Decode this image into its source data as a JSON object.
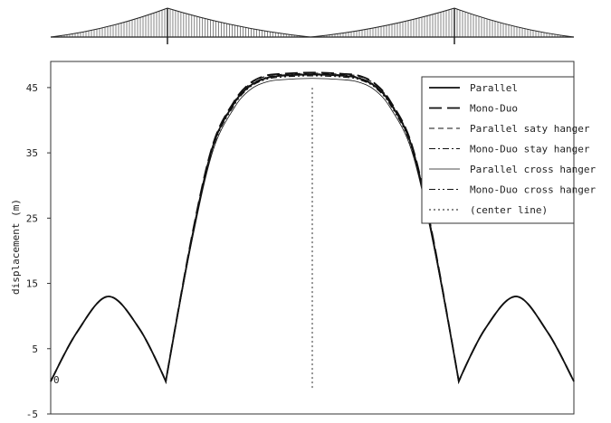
{
  "chart_data": {
    "type": "line",
    "title": "",
    "xlabel": "",
    "ylabel": "displacement (m)",
    "ylim": [
      -5,
      49
    ],
    "xlim": [
      0,
      1
    ],
    "y_ticks": [
      "45",
      "35",
      "25",
      "15",
      "5",
      "-5"
    ],
    "y_tick_values": [
      45,
      35,
      25,
      15,
      5,
      -5
    ],
    "zero_label": "0",
    "grid": false,
    "legend_position": "top-right",
    "series": [
      {
        "name": "Parallel",
        "style": "solid-thick",
        "x": [
          0,
          0.05,
          0.11,
          0.17,
          0.22,
          0.27,
          0.31,
          0.35,
          0.38,
          0.41,
          0.44,
          0.5,
          0.56,
          0.59,
          0.62,
          0.65,
          0.69,
          0.73,
          0.78,
          0.83,
          0.89,
          0.95,
          1
        ],
        "y": [
          0,
          7.5,
          13,
          8,
          0,
          22,
          36,
          42.5,
          45.2,
          46.4,
          46.8,
          47,
          46.8,
          46.4,
          45.2,
          42.5,
          36,
          22,
          0,
          8,
          13,
          7.5,
          0
        ]
      },
      {
        "name": "Mono-Duo",
        "style": "long-dash",
        "x": [
          0,
          0.05,
          0.11,
          0.17,
          0.22,
          0.27,
          0.31,
          0.35,
          0.38,
          0.41,
          0.44,
          0.5,
          0.56,
          0.59,
          0.62,
          0.65,
          0.69,
          0.73,
          0.78,
          0.83,
          0.89,
          0.95,
          1
        ],
        "y": [
          0,
          7.5,
          13,
          8,
          0,
          22.3,
          36.3,
          42.8,
          45.6,
          46.8,
          47.1,
          47.3,
          47.1,
          46.8,
          45.6,
          42.8,
          36.3,
          22.3,
          0,
          8,
          13,
          7.5,
          0
        ]
      },
      {
        "name": "Parallel saty hanger",
        "style": "dash",
        "x": [
          0,
          0.05,
          0.11,
          0.17,
          0.22,
          0.27,
          0.31,
          0.35,
          0.38,
          0.41,
          0.44,
          0.5,
          0.56,
          0.59,
          0.62,
          0.65,
          0.69,
          0.73,
          0.78,
          0.83,
          0.89,
          0.95,
          1
        ],
        "y": [
          0,
          7.5,
          13,
          8,
          0,
          22.2,
          36.2,
          42.7,
          45.5,
          46.7,
          47.0,
          47.2,
          47.0,
          46.7,
          45.5,
          42.7,
          36.2,
          22.2,
          0,
          8,
          13,
          7.5,
          0
        ]
      },
      {
        "name": "Mono-Duo stay hanger",
        "style": "dash-dot",
        "x": [
          0,
          0.05,
          0.11,
          0.17,
          0.22,
          0.27,
          0.31,
          0.35,
          0.38,
          0.41,
          0.44,
          0.5,
          0.56,
          0.59,
          0.62,
          0.65,
          0.69,
          0.73,
          0.78,
          0.83,
          0.89,
          0.95,
          1
        ],
        "y": [
          0,
          7.5,
          13,
          8,
          0,
          22.1,
          36.1,
          42.6,
          45.3,
          46.5,
          46.9,
          47.1,
          46.9,
          46.5,
          45.3,
          42.6,
          36.1,
          22.1,
          0,
          8,
          13,
          7.5,
          0
        ]
      },
      {
        "name": "Parallel cross hanger",
        "style": "solid-thin",
        "x": [
          0,
          0.05,
          0.11,
          0.17,
          0.22,
          0.27,
          0.31,
          0.35,
          0.38,
          0.41,
          0.44,
          0.5,
          0.56,
          0.59,
          0.62,
          0.65,
          0.69,
          0.73,
          0.78,
          0.83,
          0.89,
          0.95,
          1
        ],
        "y": [
          0,
          7.5,
          13,
          8,
          0,
          21.5,
          35.3,
          41.8,
          44.6,
          45.8,
          46.2,
          46.4,
          46.2,
          45.8,
          44.6,
          41.8,
          35.3,
          21.5,
          0,
          8,
          13,
          7.5,
          0
        ]
      },
      {
        "name": "Mono-Duo cross hanger",
        "style": "dash-dot-dot",
        "x": [
          0,
          0.05,
          0.11,
          0.17,
          0.22,
          0.27,
          0.31,
          0.35,
          0.38,
          0.41,
          0.44,
          0.5,
          0.56,
          0.59,
          0.62,
          0.65,
          0.69,
          0.73,
          0.78,
          0.83,
          0.89,
          0.95,
          1
        ],
        "y": [
          0,
          7.5,
          13,
          8,
          0,
          21.8,
          35.7,
          42.2,
          45.0,
          46.2,
          46.6,
          46.8,
          46.6,
          46.2,
          45.0,
          42.2,
          35.7,
          21.8,
          0,
          8,
          13,
          7.5,
          0
        ]
      },
      {
        "name": "(center line)",
        "style": "dotted",
        "x": [
          0.5,
          0.5
        ],
        "y": [
          -1,
          45
        ]
      }
    ],
    "colors": {
      "line": "#111111",
      "frame": "#333333",
      "background": "#ffffff"
    }
  }
}
